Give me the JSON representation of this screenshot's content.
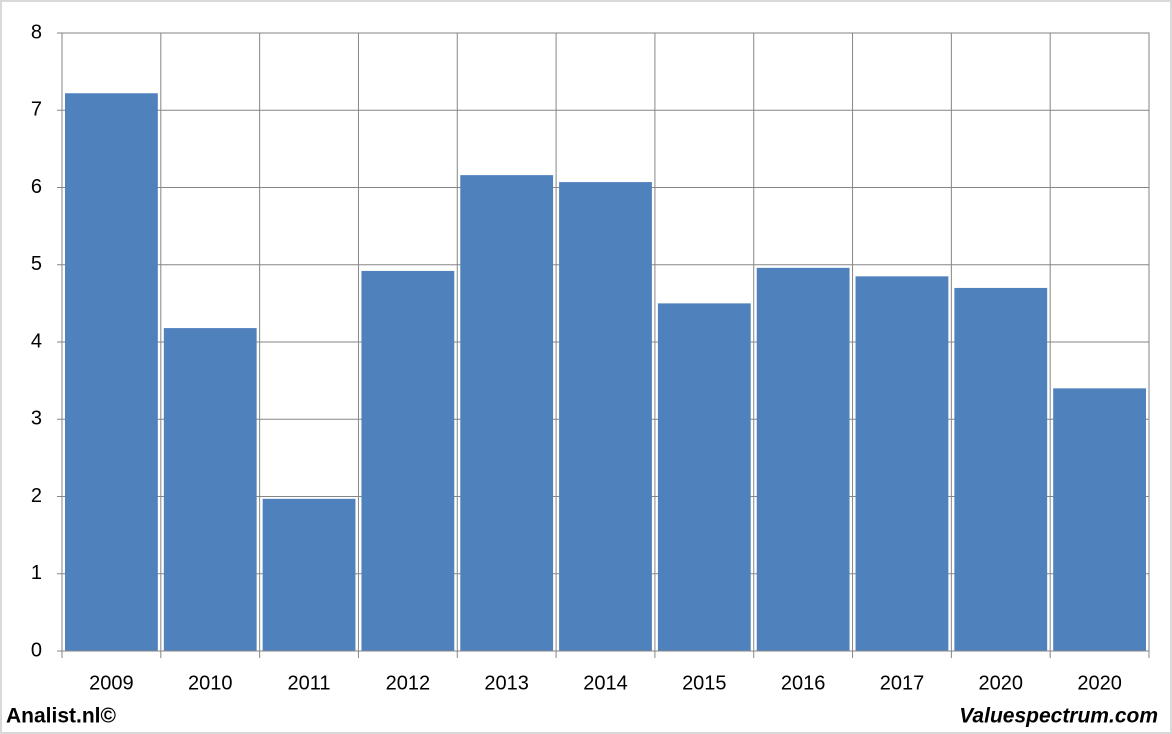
{
  "chart_data": {
    "type": "bar",
    "categories": [
      "2009",
      "2010",
      "2011",
      "2012",
      "2013",
      "2014",
      "2015",
      "2016",
      "2017",
      "2020",
      "2020"
    ],
    "values": [
      7.22,
      4.18,
      1.97,
      4.92,
      6.16,
      6.07,
      4.5,
      4.96,
      4.85,
      4.7,
      3.4
    ],
    "color": "#4f81bd",
    "ylim": [
      0,
      8
    ],
    "yticks": [
      0,
      1,
      2,
      3,
      4,
      5,
      6,
      7,
      8
    ],
    "grid": true,
    "credits": [
      "Analist.nl©",
      "Valuespectrum.com"
    ]
  }
}
